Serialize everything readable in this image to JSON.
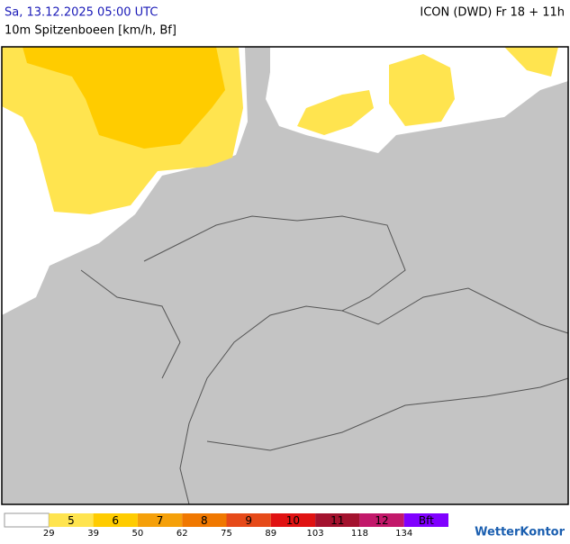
{
  "header": {
    "timestamp": "Sa, 13.12.2025 05:00 UTC",
    "model": "ICON (DWD) Fr 18 + 11h",
    "subtitle": "10m Spitzenboeen [km/h, Bf]"
  },
  "legend": {
    "bins": [
      {
        "label": "",
        "color": "#ffffff"
      },
      {
        "label": "5",
        "color": "#ffe44f"
      },
      {
        "label": "6",
        "color": "#ffcc00"
      },
      {
        "label": "7",
        "color": "#f5a00a"
      },
      {
        "label": "8",
        "color": "#f07800"
      },
      {
        "label": "9",
        "color": "#e64a19"
      },
      {
        "label": "10",
        "color": "#e01212"
      },
      {
        "label": "11",
        "color": "#a3122e"
      },
      {
        "label": "12",
        "color": "#c2186a"
      },
      {
        "label": "Bft",
        "color": "#8000ff"
      }
    ],
    "thresholds": [
      29,
      39,
      50,
      62,
      75,
      89,
      103,
      118,
      134
    ]
  },
  "brand": "WetterKontor"
}
